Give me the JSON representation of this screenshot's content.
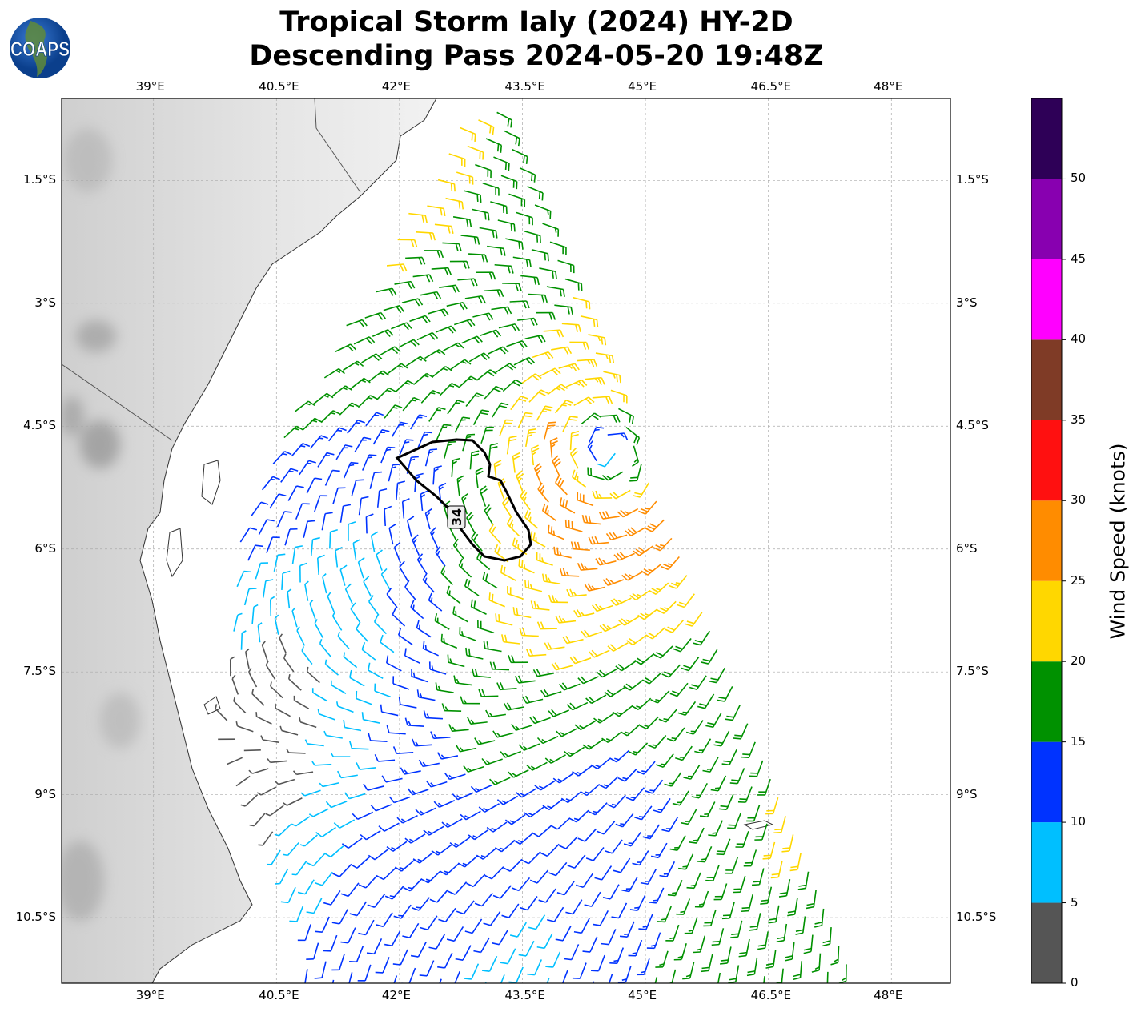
{
  "header": {
    "title_line1": "Tropical Storm Ialy (2024) HY-2D",
    "title_line2": "Descending Pass 2024-05-20 19:48Z",
    "logo_text": "COAPS"
  },
  "chart_data": {
    "type": "map-wind-barbs",
    "title": "Tropical Storm Ialy (2024) HY-2D Descending Pass 2024-05-20 19:48Z",
    "lon_range": [
      37.88,
      48.72
    ],
    "lat_range": [
      -11.3,
      -0.5
    ],
    "lon_ticks": [
      "39°E",
      "40.5°E",
      "42°E",
      "43.5°E",
      "45°E",
      "46.5°E",
      "48°E"
    ],
    "lon_tick_values": [
      39,
      40.5,
      42,
      43.5,
      45,
      46.5,
      48
    ],
    "lat_ticks": [
      "1.5°S",
      "3°S",
      "4.5°S",
      "6°S",
      "7.5°S",
      "9°S",
      "10.5°S"
    ],
    "lat_tick_values": [
      -1.5,
      -3,
      -4.5,
      -6,
      -7.5,
      -9,
      -10.5
    ],
    "grid": true,
    "contour_label": "34",
    "colorbar": {
      "label": "Wind Speed (knots)",
      "range": [
        0,
        55
      ],
      "ticks": [
        "0",
        "5",
        "10",
        "15",
        "20",
        "25",
        "30",
        "35",
        "40",
        "45",
        "50"
      ],
      "colors": [
        "#555555",
        "#00bfff",
        "#0033ff",
        "#009100",
        "#ffd700",
        "#ff8c00",
        "#ff1010",
        "#7f3b26",
        "#ff00ff",
        "#8800b0",
        "#2e0057"
      ]
    },
    "storm_center_approx": {
      "lon": 44.9,
      "lat": -4.6
    }
  }
}
